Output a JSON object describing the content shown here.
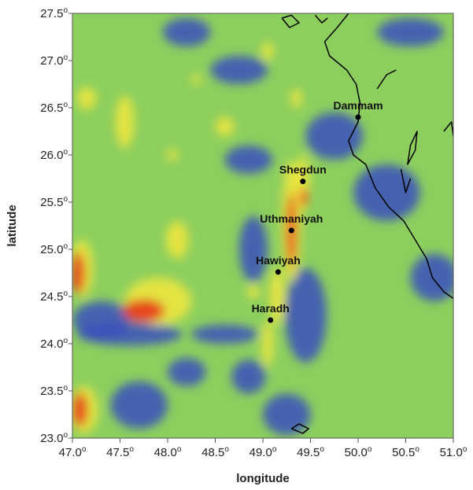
{
  "map": {
    "xlabel": "longitude",
    "ylabel": "latitude",
    "xlim": [
      47.0,
      51.0
    ],
    "ylim": [
      23.0,
      27.5
    ],
    "x_ticks": [
      {
        "value": 47.0,
        "text": "47.0",
        "sup": "o"
      },
      {
        "value": 47.5,
        "text": "47.5",
        "sup": "o"
      },
      {
        "value": 48.0,
        "text": "48.0",
        "sup": "o"
      },
      {
        "value": 48.5,
        "text": "48.5",
        "sup": "o"
      },
      {
        "value": 49.0,
        "text": "49.0",
        "sup": "o"
      },
      {
        "value": 49.5,
        "text": "49.5",
        "sup": "o"
      },
      {
        "value": 50.0,
        "text": "50.0",
        "sup": "o"
      },
      {
        "value": 50.5,
        "text": "50.5",
        "sup": "o"
      },
      {
        "value": 51.0,
        "text": "51.0",
        "sup": "o"
      }
    ],
    "y_ticks": [
      {
        "value": 23.0,
        "text": "23.0",
        "sup": "o"
      },
      {
        "value": 23.5,
        "text": "23.5",
        "sup": "o"
      },
      {
        "value": 24.0,
        "text": "24.0",
        "sup": "o"
      },
      {
        "value": 24.5,
        "text": "24.5",
        "sup": "o"
      },
      {
        "value": 25.0,
        "text": "25.0",
        "sup": "o"
      },
      {
        "value": 25.5,
        "text": "25.5",
        "sup": "o"
      },
      {
        "value": 26.0,
        "text": "26.0",
        "sup": "o"
      },
      {
        "value": 26.5,
        "text": "26.5",
        "sup": "o"
      },
      {
        "value": 27.0,
        "text": "27.0",
        "sup": "o"
      },
      {
        "value": 27.5,
        "text": "27.5",
        "sup": "o"
      }
    ],
    "cities": [
      {
        "name": "Dammam",
        "lon": 50.0,
        "lat": 26.4
      },
      {
        "name": "Shegdun",
        "lon": 49.42,
        "lat": 25.72
      },
      {
        "name": "Uthmaniyah",
        "lon": 49.3,
        "lat": 25.2
      },
      {
        "name": "Hawiyah",
        "lon": 49.16,
        "lat": 24.76
      },
      {
        "name": "Haradh",
        "lon": 49.08,
        "lat": 24.25
      }
    ],
    "colors": {
      "background": "#8dcf5e",
      "low": "#3b4fbd",
      "mid_low": "#3f9a8e",
      "high": "#f2e83c",
      "peak": "#e63d1c",
      "coastline": "#000000"
    },
    "anomalies": [
      {
        "kind": "low",
        "lon": 47.6,
        "lat": 24.1,
        "rlon": 0.55,
        "rlat": 0.12
      },
      {
        "kind": "low",
        "lon": 47.3,
        "lat": 24.25,
        "rlon": 0.3,
        "rlat": 0.2
      },
      {
        "kind": "low",
        "lon": 48.6,
        "lat": 24.1,
        "rlon": 0.35,
        "rlat": 0.1
      },
      {
        "kind": "low",
        "lon": 47.7,
        "lat": 23.35,
        "rlon": 0.3,
        "rlat": 0.25
      },
      {
        "kind": "low",
        "lon": 48.2,
        "lat": 23.7,
        "rlon": 0.2,
        "rlat": 0.15
      },
      {
        "kind": "low",
        "lon": 48.85,
        "lat": 23.65,
        "rlon": 0.18,
        "rlat": 0.18
      },
      {
        "kind": "low",
        "lon": 49.25,
        "lat": 23.25,
        "rlon": 0.25,
        "rlat": 0.22
      },
      {
        "kind": "low",
        "lon": 49.45,
        "lat": 24.3,
        "rlon": 0.22,
        "rlat": 0.5
      },
      {
        "kind": "low",
        "lon": 48.9,
        "lat": 25.0,
        "rlon": 0.15,
        "rlat": 0.35
      },
      {
        "kind": "low",
        "lon": 48.85,
        "lat": 25.95,
        "rlon": 0.25,
        "rlat": 0.15
      },
      {
        "kind": "low",
        "lon": 49.75,
        "lat": 26.2,
        "rlon": 0.3,
        "rlat": 0.25
      },
      {
        "kind": "low",
        "lon": 50.3,
        "lat": 25.6,
        "rlon": 0.35,
        "rlat": 0.3
      },
      {
        "kind": "low",
        "lon": 50.8,
        "lat": 24.7,
        "rlon": 0.25,
        "rlat": 0.25
      },
      {
        "kind": "low",
        "lon": 48.75,
        "lat": 26.9,
        "rlon": 0.3,
        "rlat": 0.15
      },
      {
        "kind": "low",
        "lon": 48.2,
        "lat": 27.3,
        "rlon": 0.25,
        "rlat": 0.15
      },
      {
        "kind": "low",
        "lon": 50.55,
        "lat": 27.3,
        "rlon": 0.35,
        "rlat": 0.15
      },
      {
        "kind": "high",
        "lon": 47.9,
        "lat": 24.45,
        "rlon": 0.35,
        "rlat": 0.25
      },
      {
        "kind": "peak",
        "lon": 47.75,
        "lat": 24.35,
        "rlon": 0.22,
        "rlat": 0.12
      },
      {
        "kind": "high",
        "lon": 48.1,
        "lat": 25.1,
        "rlon": 0.12,
        "rlat": 0.2
      },
      {
        "kind": "high",
        "lon": 47.1,
        "lat": 24.8,
        "rlon": 0.12,
        "rlat": 0.3
      },
      {
        "kind": "peak",
        "lon": 47.06,
        "lat": 24.75,
        "rlon": 0.07,
        "rlat": 0.22
      },
      {
        "kind": "high",
        "lon": 47.12,
        "lat": 23.3,
        "rlon": 0.15,
        "rlat": 0.25
      },
      {
        "kind": "peak",
        "lon": 47.08,
        "lat": 23.3,
        "rlon": 0.08,
        "rlat": 0.18
      },
      {
        "kind": "high",
        "lon": 47.55,
        "lat": 26.35,
        "rlon": 0.1,
        "rlat": 0.28
      },
      {
        "kind": "high",
        "lon": 47.15,
        "lat": 26.6,
        "rlon": 0.1,
        "rlat": 0.12
      },
      {
        "kind": "high",
        "lon": 48.6,
        "lat": 26.3,
        "rlon": 0.1,
        "rlat": 0.1
      },
      {
        "kind": "high",
        "lon": 48.05,
        "lat": 26.0,
        "rlon": 0.06,
        "rlat": 0.06
      },
      {
        "kind": "high",
        "lon": 48.3,
        "lat": 26.8,
        "rlon": 0.05,
        "rlat": 0.05
      },
      {
        "kind": "high",
        "lon": 49.3,
        "lat": 25.3,
        "rlon": 0.1,
        "rlat": 0.65
      },
      {
        "kind": "peak",
        "lon": 49.3,
        "lat": 25.2,
        "rlon": 0.05,
        "rlat": 0.4
      },
      {
        "kind": "high",
        "lon": 49.42,
        "lat": 25.7,
        "rlon": 0.07,
        "rlat": 0.3
      },
      {
        "kind": "peak",
        "lon": 49.43,
        "lat": 25.55,
        "rlon": 0.04,
        "rlat": 0.1
      },
      {
        "kind": "high",
        "lon": 49.15,
        "lat": 24.5,
        "rlon": 0.08,
        "rlat": 0.3
      },
      {
        "kind": "high",
        "lon": 49.05,
        "lat": 24.0,
        "rlon": 0.06,
        "rlat": 0.25
      },
      {
        "kind": "high",
        "lon": 48.9,
        "lat": 24.55,
        "rlon": 0.06,
        "rlat": 0.08
      },
      {
        "kind": "high",
        "lon": 49.05,
        "lat": 27.1,
        "rlon": 0.06,
        "rlat": 0.1
      },
      {
        "kind": "high",
        "lon": 49.35,
        "lat": 26.6,
        "rlon": 0.06,
        "rlat": 0.1
      }
    ],
    "coastlines": [
      [
        [
          49.9,
          27.5
        ],
        [
          49.78,
          27.35
        ],
        [
          49.65,
          27.2
        ],
        [
          49.7,
          27.05
        ],
        [
          49.88,
          26.9
        ],
        [
          49.98,
          26.75
        ],
        [
          50.02,
          26.55
        ],
        [
          50.0,
          26.35
        ],
        [
          49.9,
          26.15
        ],
        [
          49.95,
          26.0
        ],
        [
          50.08,
          25.9
        ],
        [
          50.18,
          25.65
        ],
        [
          50.32,
          25.45
        ],
        [
          50.48,
          25.3
        ],
        [
          50.6,
          25.1
        ],
        [
          50.72,
          24.9
        ],
        [
          50.78,
          24.7
        ],
        [
          50.9,
          24.55
        ],
        [
          51.0,
          24.48
        ]
      ],
      [
        [
          49.2,
          27.45
        ],
        [
          49.28,
          27.35
        ],
        [
          49.38,
          27.4
        ],
        [
          49.3,
          27.48
        ],
        [
          49.2,
          27.45
        ]
      ],
      [
        [
          49.55,
          27.48
        ],
        [
          49.62,
          27.4
        ],
        [
          49.68,
          27.45
        ]
      ],
      [
        [
          50.55,
          26.1
        ],
        [
          50.62,
          26.25
        ],
        [
          50.6,
          26.05
        ],
        [
          50.52,
          25.9
        ],
        [
          50.55,
          26.1
        ]
      ],
      [
        [
          50.9,
          26.25
        ],
        [
          50.98,
          26.35
        ],
        [
          51.0,
          26.2
        ]
      ],
      [
        [
          50.2,
          26.7
        ],
        [
          50.3,
          26.85
        ],
        [
          50.4,
          26.9
        ]
      ],
      [
        [
          50.45,
          25.85
        ],
        [
          50.5,
          25.6
        ],
        [
          50.55,
          25.75
        ]
      ],
      [
        [
          49.3,
          23.1
        ],
        [
          49.38,
          23.15
        ],
        [
          49.48,
          23.1
        ],
        [
          49.42,
          23.05
        ],
        [
          49.3,
          23.1
        ]
      ]
    ]
  }
}
